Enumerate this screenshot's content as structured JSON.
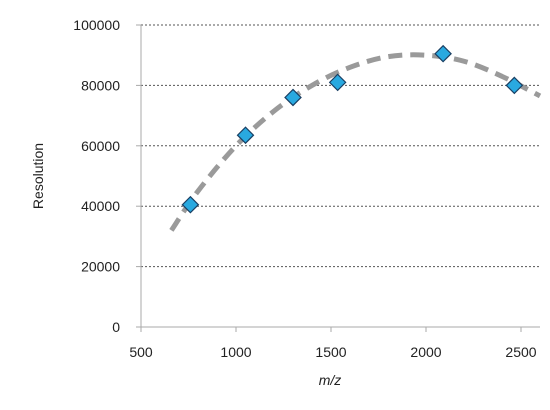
{
  "chart_data": {
    "type": "scatter",
    "xlabel": "m/z",
    "ylabel": "Resolution",
    "xlim": [
      500,
      2600
    ],
    "ylim": [
      0,
      100000
    ],
    "x_ticks": [
      "500",
      "1000",
      "1500",
      "2000",
      "2500"
    ],
    "y_ticks": [
      "0",
      "20000",
      "40000",
      "60000",
      "80000",
      "100000"
    ],
    "grid": "horizontal dashed",
    "legend": "none",
    "series": [
      {
        "marker": "diamond",
        "color": "#29a9e0",
        "edge_color": "#1a3f63",
        "points": [
          {
            "x": 760,
            "y": 40500
          },
          {
            "x": 1050,
            "y": 63500
          },
          {
            "x": 1300,
            "y": 76000
          },
          {
            "x": 1535,
            "y": 81000
          },
          {
            "x": 2090,
            "y": 90500
          },
          {
            "x": 2465,
            "y": 80000
          }
        ]
      }
    ],
    "trendline": {
      "style": "dashed",
      "color": "#9a9a9a",
      "points": [
        {
          "x": 660,
          "y": 32000
        },
        {
          "x": 800,
          "y": 45000
        },
        {
          "x": 1000,
          "y": 60000
        },
        {
          "x": 1200,
          "y": 71500
        },
        {
          "x": 1400,
          "y": 80000
        },
        {
          "x": 1600,
          "y": 86000
        },
        {
          "x": 1800,
          "y": 89500
        },
        {
          "x": 2000,
          "y": 90000
        },
        {
          "x": 2200,
          "y": 88000
        },
        {
          "x": 2400,
          "y": 83000
        },
        {
          "x": 2600,
          "y": 76500
        }
      ]
    }
  }
}
